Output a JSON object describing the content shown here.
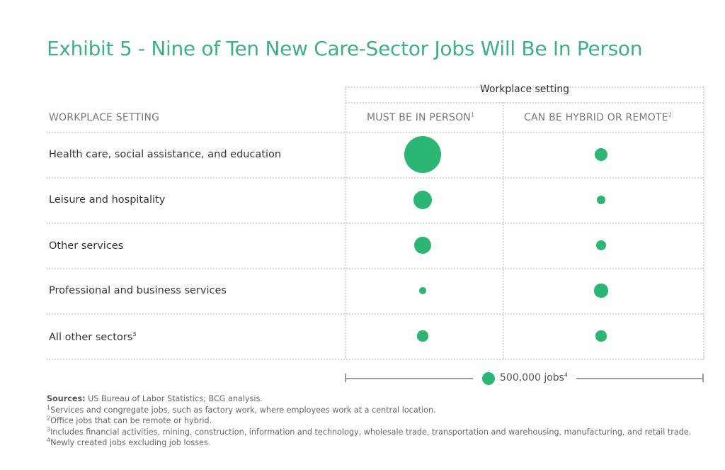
{
  "title": "Exhibit 5 - Nine of Ten New Care-Sector Jobs Will Be In Person",
  "table": {
    "group_header": "Workplace setting",
    "row_header": "WORKPLACE SETTING",
    "columns": [
      {
        "label": "MUST BE IN PERSON",
        "sup": "1"
      },
      {
        "label": "CAN BE HYBRID OR REMOTE",
        "sup": "2"
      }
    ],
    "rows": [
      {
        "label": "Health care, social assistance, and education",
        "sup": ""
      },
      {
        "label": "Leisure and hospitality",
        "sup": ""
      },
      {
        "label": "Other services",
        "sup": ""
      },
      {
        "label": "Professional and business services",
        "sup": ""
      },
      {
        "label": "All other sectors",
        "sup": "3"
      }
    ]
  },
  "legend": {
    "label": "500,000 jobs",
    "sup": "4",
    "reference_value": 500000
  },
  "footnotes": {
    "sources_label": "Sources:",
    "sources_text": " US Bureau of Labor Statistics; BCG analysis.",
    "notes": [
      {
        "num": "1",
        "text": "Services and congregate jobs, such as factory work, where employees work at a central location."
      },
      {
        "num": "2",
        "text": "Office jobs that can be remote or hybrid."
      },
      {
        "num": "3",
        "text": "Includes financial activities, mining, construction, information and technology, wholesale trade, transportation and warehousing, manufacturing, and retail trade."
      },
      {
        "num": "4",
        "text": "Newly created jobs excluding job losses."
      }
    ]
  },
  "colors": {
    "title": "#3fae8a",
    "bubble": "#2bb673",
    "grid": "#d8d8d8"
  },
  "chart_data": {
    "type": "bubble-table",
    "title": "Exhibit 5 - Nine of Ten New Care-Sector Jobs Will Be In Person",
    "categories": [
      "Health care, social assistance, and education",
      "Leisure and hospitality",
      "Other services",
      "Professional and business services",
      "All other sectors"
    ],
    "series": [
      {
        "name": "Must be in person",
        "values": [
          4200000,
          1100000,
          950000,
          150000,
          350000
        ]
      },
      {
        "name": "Can be hybrid or remote",
        "values": [
          500000,
          260000,
          300000,
          560000,
          350000
        ]
      }
    ],
    "size_legend": {
      "label": "500,000 jobs",
      "value": 500000
    },
    "units": "new jobs (estimated from bubble area)"
  }
}
